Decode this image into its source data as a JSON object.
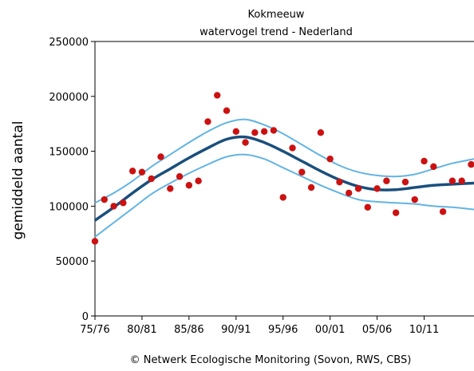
{
  "chart_data": {
    "type": "scatter",
    "title": "Kokmeeuw",
    "subtitle": "watervogel trend - Nederland",
    "ylabel": "gemiddeld aantal",
    "xlabel": "",
    "ylim": [
      0,
      250000
    ],
    "yticks": [
      0,
      50000,
      100000,
      150000,
      200000,
      250000
    ],
    "yticklabels": [
      "0",
      "50000",
      "100000",
      "150000",
      "200000",
      "250000"
    ],
    "xlim": [
      0,
      40.3
    ],
    "xticks": [
      0,
      5,
      10,
      15,
      20,
      25,
      30,
      35
    ],
    "xticklabels": [
      "75/76",
      "80/81",
      "85/86",
      "90/91",
      "95/96",
      "00/01",
      "05/06",
      "10/11"
    ],
    "grid": false,
    "colors": {
      "points": "#cc1111",
      "trend": "#1a4f7c",
      "confidence": "#62b4e2"
    },
    "series": [
      {
        "kind": "points",
        "x": [
          0,
          1,
          2,
          3,
          4,
          5,
          6,
          7,
          8,
          9,
          10,
          11,
          12,
          13,
          14,
          15,
          16,
          17,
          18,
          19,
          20,
          21,
          22,
          23,
          24,
          25,
          26,
          27,
          28,
          29,
          30,
          31,
          32,
          33,
          34,
          35,
          36,
          37,
          38,
          39,
          40
        ],
        "y": [
          68000,
          106000,
          100000,
          103000,
          132000,
          131000,
          125000,
          145000,
          116000,
          127000,
          119000,
          123000,
          177000,
          201000,
          187000,
          168000,
          158000,
          167000,
          168000,
          169000,
          108000,
          153000,
          131000,
          117000,
          167000,
          143000,
          122000,
          112000,
          116000,
          99000,
          116000,
          123000,
          94000,
          122000,
          106000,
          141000,
          136000,
          95000,
          123000,
          123000,
          138000
        ]
      },
      {
        "kind": "trend",
        "x": [
          0,
          2,
          4,
          6,
          8,
          10,
          12,
          14,
          16,
          18,
          20,
          22,
          24,
          26,
          28,
          30,
          32,
          34,
          36,
          38,
          40.3
        ],
        "y": [
          87000,
          99000,
          112000,
          124000,
          134000,
          144000,
          153000,
          161000,
          163000,
          158000,
          150000,
          141000,
          132000,
          124000,
          118000,
          115000,
          115000,
          117000,
          119000,
          120000,
          121000
        ]
      },
      {
        "kind": "upper",
        "x": [
          0,
          2,
          4,
          6,
          8,
          10,
          12,
          14,
          16,
          18,
          20,
          22,
          24,
          26,
          28,
          30,
          32,
          34,
          36,
          38,
          40.3
        ],
        "y": [
          103000,
          112000,
          123000,
          136000,
          147000,
          158000,
          168000,
          176000,
          179000,
          174000,
          166000,
          156000,
          146000,
          137000,
          131000,
          128000,
          127000,
          129000,
          134000,
          139000,
          143000
        ]
      },
      {
        "kind": "lower",
        "x": [
          0,
          2,
          4,
          6,
          8,
          10,
          12,
          14,
          16,
          18,
          20,
          22,
          24,
          26,
          28,
          30,
          32,
          34,
          36,
          38,
          40.3
        ],
        "y": [
          72000,
          85000,
          98000,
          111000,
          121000,
          130000,
          138000,
          145000,
          147000,
          143000,
          135000,
          127000,
          119000,
          112000,
          106000,
          104000,
          103000,
          102000,
          100000,
          99000,
          97000
        ]
      }
    ],
    "credit": "© Netwerk Ecologische Monitoring (Sovon, RWS, CBS)"
  }
}
